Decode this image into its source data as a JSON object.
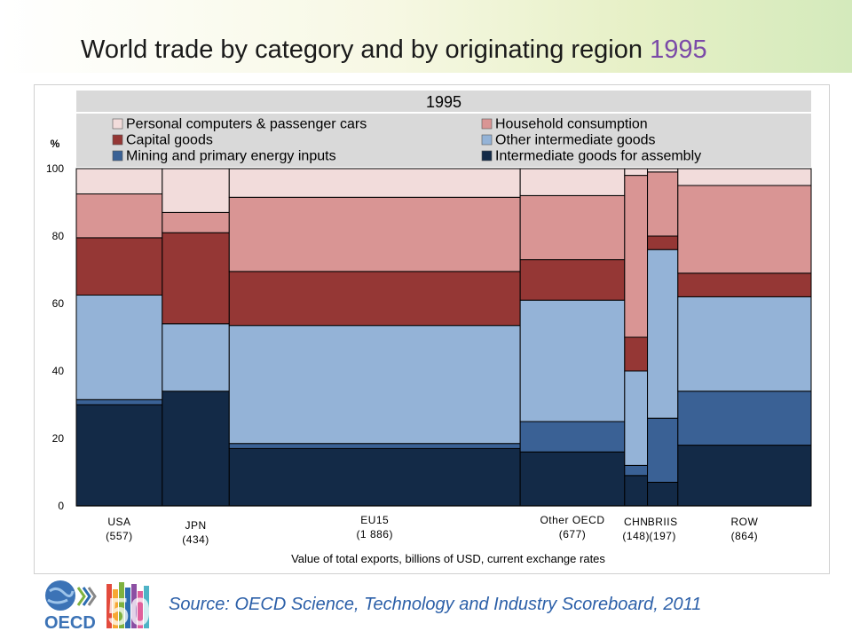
{
  "slide": {
    "title_prefix": "World trade by category and by originating region",
    "title_year": "1995",
    "source": "Source: OECD Science, Technology and Industry Scoreboard, 2011",
    "logo_text": "OECD",
    "logo_number": "50"
  },
  "chart_data": {
    "type": "bar",
    "subtype": "marimekko",
    "title": "1995",
    "ylabel": "%",
    "xlabel": "Value of total exports, billions of USD, current exchange rates",
    "ylim": [
      0,
      100
    ],
    "yticks": [
      "0",
      "20",
      "40",
      "60",
      "80",
      "100"
    ],
    "legend_position": "top",
    "grid": false,
    "categories": [
      "USA",
      "JPN",
      "EU15",
      "Other OECD",
      "CHN",
      "BRIIS",
      "ROW"
    ],
    "category_values": [
      "(557)",
      "(434)",
      "(1 886)",
      "(677)",
      "(148)",
      "(197)",
      "(864)"
    ],
    "widths": [
      557,
      434,
      1886,
      677,
      148,
      197,
      864
    ],
    "series": [
      {
        "name": "Intermediate goods for assembly",
        "color": "#132a47",
        "values": [
          30,
          34,
          17,
          16,
          9,
          7,
          18
        ]
      },
      {
        "name": "Mining and primary energy inputs",
        "color": "#3a6195",
        "values": [
          1.5,
          0,
          1.5,
          9,
          3,
          19,
          16
        ]
      },
      {
        "name": "Other intermediate goods",
        "color": "#94b3d7",
        "values": [
          31,
          20,
          35,
          36,
          28,
          50,
          28
        ]
      },
      {
        "name": "Capital goods",
        "color": "#953735",
        "values": [
          17,
          27,
          16,
          12,
          10,
          4,
          7
        ]
      },
      {
        "name": "Household consumption",
        "color": "#d99594",
        "values": [
          13,
          6,
          22,
          19,
          48,
          19,
          26
        ]
      },
      {
        "name": "Personal computers & passenger cars",
        "color": "#f2dcdb",
        "values": [
          7.5,
          13,
          8.5,
          8,
          2,
          1,
          5
        ]
      }
    ],
    "legend_order": [
      "Personal computers & passenger cars",
      "Household consumption",
      "Capital goods",
      "Other intermediate goods",
      "Mining and primary energy inputs",
      "Intermediate goods for assembly"
    ]
  }
}
